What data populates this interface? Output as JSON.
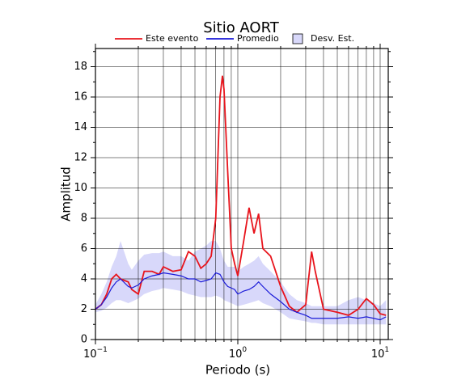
{
  "chart_data": {
    "type": "line",
    "title": "Sitio AORT",
    "x_label": "Periodo (s)",
    "y_label": "Amplitud",
    "x_scale": "log",
    "grid": true,
    "xlim": [
      0.1,
      11.4
    ],
    "ylim": [
      0,
      19.2
    ],
    "xticks": [
      {
        "value": 0.1,
        "label": "10",
        "exponent": "−1"
      },
      {
        "value": 1,
        "label": "10",
        "exponent": "0"
      },
      {
        "value": 10,
        "label": "10",
        "exponent": "1"
      }
    ],
    "xminorticks": [
      0.2,
      0.3,
      0.4,
      0.5,
      0.6,
      0.7,
      0.8,
      0.9,
      2,
      3,
      4,
      5,
      6,
      7,
      8,
      9
    ],
    "yticks": [
      0,
      2,
      4,
      6,
      8,
      10,
      12,
      14,
      16,
      18
    ],
    "yminorticks": [
      1,
      3,
      5,
      7,
      9,
      11,
      13,
      15,
      17,
      19
    ],
    "x": [
      0.1,
      0.11,
      0.12,
      0.13,
      0.14,
      0.15,
      0.17,
      0.18,
      0.2,
      0.22,
      0.25,
      0.28,
      0.3,
      0.35,
      0.4,
      0.45,
      0.5,
      0.55,
      0.6,
      0.65,
      0.7,
      0.75,
      0.78,
      0.8,
      0.85,
      0.9,
      0.95,
      1.0,
      1.1,
      1.2,
      1.3,
      1.4,
      1.5,
      1.7,
      2.0,
      2.3,
      2.6,
      3.0,
      3.3,
      3.5,
      4,
      5,
      6,
      7,
      8,
      9,
      10,
      11
    ],
    "series": [
      {
        "name": "Este evento",
        "color": "#e8141c",
        "values": [
          2.0,
          2.3,
          3.0,
          4.0,
          4.3,
          4.0,
          3.8,
          3.3,
          3.0,
          4.5,
          4.5,
          4.3,
          4.8,
          4.5,
          4.6,
          5.8,
          5.5,
          4.7,
          5.0,
          5.5,
          8,
          16,
          17.4,
          16.5,
          11,
          6,
          5,
          4.2,
          6.5,
          8.7,
          7,
          8.3,
          6,
          5.5,
          3.5,
          2.2,
          1.8,
          2.3,
          5.8,
          4.5,
          2,
          1.8,
          1.6,
          2,
          2.7,
          2.3,
          1.7,
          1.6
        ]
      },
      {
        "name": "Promedio",
        "color": "#1a1ad8",
        "values": [
          2,
          2.3,
          2.8,
          3.4,
          3.8,
          4,
          3.5,
          3.4,
          3.6,
          4,
          4.2,
          4.3,
          4.4,
          4.3,
          4.2,
          4,
          4,
          3.8,
          3.9,
          4,
          4.4,
          4.3,
          4,
          3.8,
          3.5,
          3.4,
          3.3,
          3,
          3.2,
          3.3,
          3.5,
          3.8,
          3.5,
          3,
          2.5,
          2,
          1.8,
          1.6,
          1.4,
          1.4,
          1.4,
          1.4,
          1.5,
          1.4,
          1.5,
          1.4,
          1.3,
          1.5
        ]
      },
      {
        "name": "Desv. Est.",
        "color": "#d8d8fa",
        "upper": [
          2.3,
          3.0,
          3.8,
          4.8,
          5.5,
          6.5,
          5.0,
          4.6,
          5.2,
          5.6,
          5.7,
          5.7,
          5.8,
          5.5,
          5.5,
          5.2,
          5.8,
          6.0,
          6.2,
          6.5,
          6.5,
          6.0,
          5.5,
          5.2,
          4.8,
          4.8,
          4.8,
          4.5,
          4.8,
          5.0,
          5.2,
          5.5,
          5.0,
          4.5,
          3.8,
          3.0,
          2.6,
          2.4,
          2.2,
          2.2,
          2.2,
          2.2,
          2.6,
          2.8,
          2.6,
          2.4,
          2.2,
          2.6
        ],
        "lower": [
          1.8,
          1.9,
          2.1,
          2.4,
          2.6,
          2.6,
          2.4,
          2.5,
          2.7,
          3.0,
          3.2,
          3.3,
          3.4,
          3.3,
          3.2,
          3.0,
          2.9,
          2.8,
          2.8,
          2.8,
          2.9,
          2.8,
          2.7,
          2.6,
          2.5,
          2.4,
          2.3,
          2.2,
          2.3,
          2.4,
          2.5,
          2.6,
          2.4,
          2.2,
          1.8,
          1.4,
          1.3,
          1.2,
          1.1,
          1.1,
          1.0,
          1.0,
          1.0,
          1.0,
          1.0,
          1.0,
          1.0,
          1.0
        ]
      }
    ]
  }
}
